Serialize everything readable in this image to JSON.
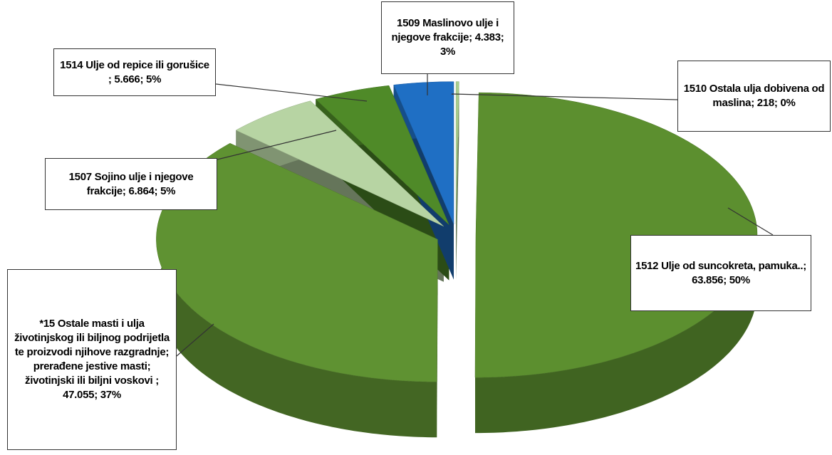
{
  "chart_data": {
    "type": "pie",
    "categories": [
      "1510 Ostala ulja dobivena od maslina",
      "1512 Ulje od suncokreta, pamuka..",
      "*15 Ostale masti i ulja životinjskog ili biljnog podrijetla te proizvodi njihove razgradnje; prerađene jestive masti; životinjski ili biljni voskovi ",
      "1507 Sojino ulje i njegove frakcije",
      "1514 Ulje od repice ili gorušice ",
      "1509 Maslinovo ulje i njegove frakcije"
    ],
    "values": [
      218,
      63856,
      47055,
      6864,
      5666,
      4383
    ],
    "value_labels": [
      "218",
      "63.856",
      "47.055",
      "6.864",
      "5.666",
      "4.383"
    ],
    "percents": [
      0,
      50,
      37,
      5,
      5,
      3
    ],
    "percent_labels": [
      "0%",
      "50%",
      "37%",
      "5%",
      "5%",
      "3%"
    ],
    "separator": "; ",
    "colors": [
      "#a9cf8e",
      "#5c8f2f",
      "#5f9232",
      "#b7d4a3",
      "#4f8a28",
      "#1f6fc4"
    ]
  }
}
